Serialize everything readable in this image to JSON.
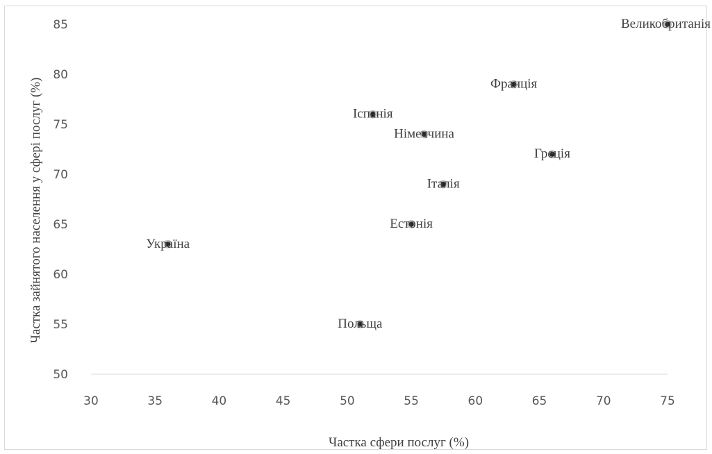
{
  "chart_data": {
    "type": "scatter",
    "title": "",
    "xlabel": "Частка сфери послуг (%)",
    "ylabel": "Частка зайнятого населення у сфері послуг (%)",
    "xlim": [
      30,
      75
    ],
    "ylim": [
      50,
      85
    ],
    "xticks": [
      30,
      35,
      40,
      45,
      50,
      55,
      60,
      65,
      70,
      75
    ],
    "yticks": [
      50,
      55,
      60,
      65,
      70,
      75,
      80,
      85
    ],
    "grid": false,
    "legend": "none",
    "marker_color": "#262626",
    "points": [
      {
        "label": "Великобританія",
        "x": 75,
        "y": 85
      },
      {
        "label": "Франція",
        "x": 63,
        "y": 79
      },
      {
        "label": "Іспанія",
        "x": 52,
        "y": 76
      },
      {
        "label": "Німеччина",
        "x": 56,
        "y": 74
      },
      {
        "label": "Греція",
        "x": 66,
        "y": 72
      },
      {
        "label": "Італія",
        "x": 57.5,
        "y": 69
      },
      {
        "label": "Естонія",
        "x": 55,
        "y": 65
      },
      {
        "label": "Україна",
        "x": 36,
        "y": 63
      },
      {
        "label": "Польща",
        "x": 51,
        "y": 55
      }
    ]
  }
}
